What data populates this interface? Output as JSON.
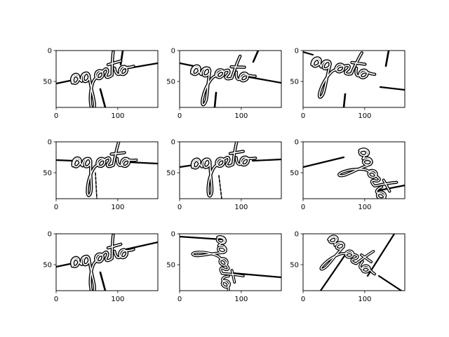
{
  "figure": {
    "background": "#ffffff",
    "ink_color": "#000000"
  },
  "chart_data": [
    {
      "type": "image",
      "word": "agosto",
      "transform": "slight rotation, baseline rising to right",
      "xlim": [
        0,
        165
      ],
      "ylim": [
        92,
        0
      ],
      "xticks": [
        "0",
        "100"
      ],
      "yticks": [
        "0",
        "50"
      ]
    },
    {
      "type": "image",
      "word": "agosto",
      "transform": "slight rotation, baseline falling to right",
      "xlim": [
        0,
        165
      ],
      "ylim": [
        92,
        0
      ],
      "xticks": [
        "0",
        "100"
      ],
      "yticks": [
        "0",
        "50"
      ]
    },
    {
      "type": "image",
      "word": "agosto",
      "transform": "rotated, falling to right",
      "xlim": [
        0,
        165
      ],
      "ylim": [
        92,
        0
      ],
      "xticks": [
        "0",
        "100"
      ],
      "yticks": [
        "0",
        "50"
      ]
    },
    {
      "type": "image",
      "word": "agosto",
      "transform": "nearly level",
      "xlim": [
        0,
        165
      ],
      "ylim": [
        92,
        0
      ],
      "xticks": [
        "0",
        "100"
      ],
      "yticks": [
        "0",
        "50"
      ]
    },
    {
      "type": "image",
      "word": "agosto",
      "transform": "nearly level, slight rise",
      "xlim": [
        0,
        165
      ],
      "ylim": [
        92,
        0
      ],
      "xticks": [
        "0",
        "100"
      ],
      "yticks": [
        "0",
        "50"
      ]
    },
    {
      "type": "image",
      "word": "agosto",
      "transform": "strong rotation, steep diagonal",
      "xlim": [
        0,
        165
      ],
      "ylim": [
        92,
        0
      ],
      "xticks": [
        "0",
        "100"
      ],
      "yticks": [
        "0",
        "50"
      ]
    },
    {
      "type": "image",
      "word": "agosto",
      "transform": "slight rotation, rising to right",
      "xlim": [
        0,
        165
      ],
      "ylim": [
        92,
        0
      ],
      "xticks": [
        "0",
        "100"
      ],
      "yticks": [
        "0",
        "50"
      ]
    },
    {
      "type": "image",
      "word": "agosto",
      "transform": "rotated ~90 degrees, vertical",
      "xlim": [
        0,
        165
      ],
      "ylim": [
        92,
        0
      ],
      "xticks": [
        "0",
        "100"
      ],
      "yticks": [
        "0",
        "50"
      ]
    },
    {
      "type": "image",
      "word": "agosto",
      "transform": "rotated ~60 degrees, diagonal",
      "xlim": [
        0,
        165
      ],
      "ylim": [
        92,
        0
      ],
      "xticks": [
        "0",
        "100"
      ],
      "yticks": [
        "0",
        "50"
      ]
    }
  ]
}
